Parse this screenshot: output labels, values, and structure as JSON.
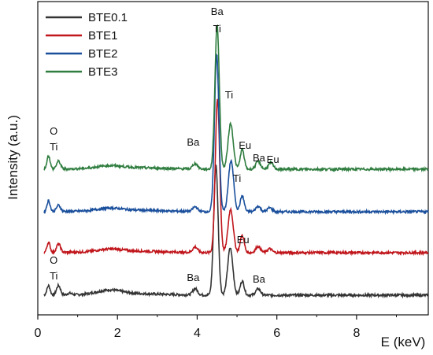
{
  "chart_data": {
    "type": "line",
    "xlabel": "E (keV)",
    "ylabel": "Intensity (a.u.)",
    "xlim": [
      0,
      9.8
    ],
    "x_ticks": [
      0,
      2,
      4,
      6,
      8
    ],
    "y_ticks_shown": false,
    "grid": false,
    "legend_position": "top-left",
    "series": [
      {
        "name": "BTE0.1",
        "color": "#333333",
        "baseline": 0,
        "peaks": [
          {
            "x": 0.27,
            "h": 12,
            "w": 0.04
          },
          {
            "x": 0.52,
            "h": 12,
            "w": 0.05
          },
          {
            "x": 0.8,
            "h": 2,
            "w": 0.06
          },
          {
            "x": 1.8,
            "h": 5,
            "w": 0.3
          },
          {
            "x": 3.95,
            "h": 8,
            "w": 0.06
          },
          {
            "x": 4.47,
            "h": 165,
            "w": 0.055
          },
          {
            "x": 4.83,
            "h": 60,
            "w": 0.065
          },
          {
            "x": 5.13,
            "h": 18,
            "w": 0.05
          },
          {
            "x": 5.53,
            "h": 8,
            "w": 0.06
          }
        ]
      },
      {
        "name": "BTE1",
        "color": "#c0161c",
        "baseline": 54,
        "peaks": [
          {
            "x": 0.27,
            "h": 13,
            "w": 0.04
          },
          {
            "x": 0.52,
            "h": 11,
            "w": 0.05
          },
          {
            "x": 1.8,
            "h": 3,
            "w": 0.3
          },
          {
            "x": 3.95,
            "h": 7,
            "w": 0.06
          },
          {
            "x": 4.51,
            "h": 195,
            "w": 0.055
          },
          {
            "x": 4.84,
            "h": 55,
            "w": 0.065
          },
          {
            "x": 5.13,
            "h": 22,
            "w": 0.05
          },
          {
            "x": 5.53,
            "h": 8,
            "w": 0.06
          },
          {
            "x": 5.82,
            "h": 5,
            "w": 0.06
          }
        ]
      },
      {
        "name": "BTE2",
        "color": "#1a4f9c",
        "baseline": 106,
        "peaks": [
          {
            "x": 0.27,
            "h": 14,
            "w": 0.04
          },
          {
            "x": 0.52,
            "h": 8,
            "w": 0.05
          },
          {
            "x": 1.8,
            "h": 3,
            "w": 0.3
          },
          {
            "x": 3.95,
            "h": 6,
            "w": 0.06
          },
          {
            "x": 4.49,
            "h": 200,
            "w": 0.055
          },
          {
            "x": 4.85,
            "h": 65,
            "w": 0.065
          },
          {
            "x": 5.13,
            "h": 20,
            "w": 0.05
          },
          {
            "x": 5.53,
            "h": 7,
            "w": 0.06
          },
          {
            "x": 5.82,
            "h": 5,
            "w": 0.06
          }
        ]
      },
      {
        "name": "BTE3",
        "color": "#2f7d3f",
        "baseline": 160,
        "peaks": [
          {
            "x": 0.27,
            "h": 17,
            "w": 0.04
          },
          {
            "x": 0.52,
            "h": 10,
            "w": 0.05
          },
          {
            "x": 1.8,
            "h": 3,
            "w": 0.3
          },
          {
            "x": 3.95,
            "h": 7,
            "w": 0.06
          },
          {
            "x": 4.5,
            "h": 183,
            "w": 0.055
          },
          {
            "x": 4.84,
            "h": 58,
            "w": 0.065
          },
          {
            "x": 5.13,
            "h": 25,
            "w": 0.05
          },
          {
            "x": 5.53,
            "h": 10,
            "w": 0.06
          },
          {
            "x": 5.85,
            "h": 8,
            "w": 0.06
          }
        ]
      }
    ],
    "annotations": [
      {
        "text": "Ba",
        "x": 4.5,
        "y": 356
      },
      {
        "text": "Ti",
        "x": 4.5,
        "y": 334
      },
      {
        "text": "Ti",
        "x": 4.8,
        "y": 250
      },
      {
        "text": "Ba",
        "x": 3.9,
        "y": 190
      },
      {
        "text": "Eu",
        "x": 5.2,
        "y": 186
      },
      {
        "text": "Ba",
        "x": 5.55,
        "y": 170
      },
      {
        "text": "Eu",
        "x": 5.9,
        "y": 168
      },
      {
        "text": "O",
        "x": 0.4,
        "y": 204
      },
      {
        "text": "Ti",
        "x": 0.4,
        "y": 184
      },
      {
        "text": "Ti",
        "x": 5.0,
        "y": 144
      },
      {
        "text": "Eu",
        "x": 5.15,
        "y": 66
      },
      {
        "text": "O",
        "x": 0.4,
        "y": 40
      },
      {
        "text": "Ti",
        "x": 0.4,
        "y": 20
      },
      {
        "text": "Ba",
        "x": 3.9,
        "y": 18
      },
      {
        "text": "Ba",
        "x": 5.55,
        "y": 16
      }
    ]
  }
}
